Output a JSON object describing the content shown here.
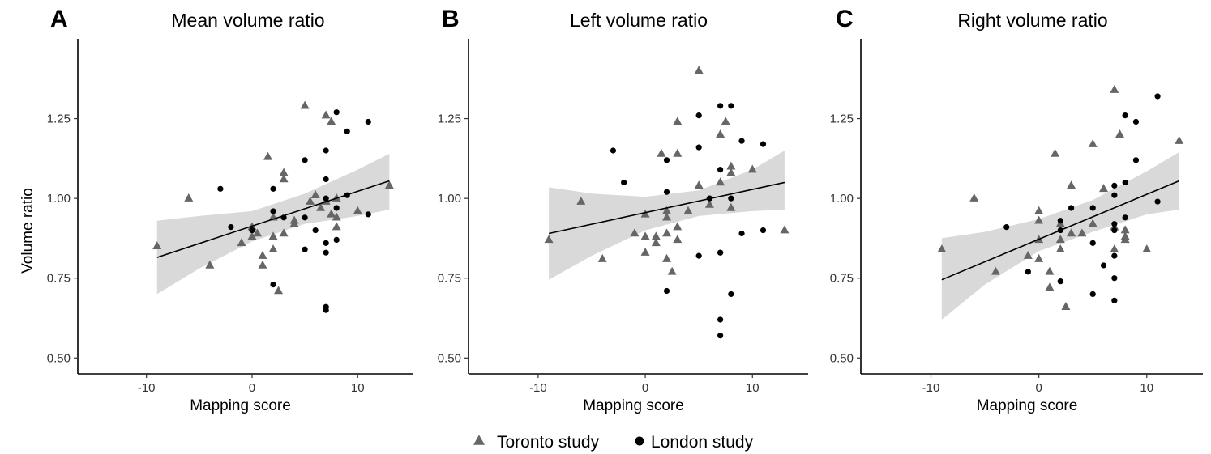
{
  "legend": {
    "toronto_label": "Toronto study",
    "london_label": "London study",
    "toronto_color": "#666666",
    "london_color": "#000000"
  },
  "style": {
    "band_color": "#d9d9d9",
    "line_color": "#000000"
  },
  "chart_data": [
    {
      "type": "scatter",
      "panel": "A",
      "title": "Mean volume ratio",
      "xlabel": "Mapping score",
      "ylabel": "Volume ratio",
      "xlim": [
        -16.5,
        15.2
      ],
      "ylim": [
        0.45,
        1.5
      ],
      "xticks": [
        -10,
        0,
        10
      ],
      "xtick_labels": [
        "-10",
        "0",
        "10"
      ],
      "yticks": [
        0.5,
        0.75,
        1.0,
        1.25
      ],
      "ytick_labels": [
        "0.50",
        "0.75",
        "1.00",
        "1.25"
      ],
      "grid": false,
      "legend_position": "bottom",
      "fit": {
        "x": [
          -9,
          13
        ],
        "y": [
          0.815,
          1.055
        ]
      },
      "ci_band": {
        "x": [
          -9,
          -5,
          0,
          5,
          10,
          13
        ],
        "lower": [
          0.7,
          0.78,
          0.865,
          0.92,
          0.945,
          0.965
        ],
        "upper": [
          0.93,
          0.945,
          0.96,
          1.015,
          1.09,
          1.14
        ]
      },
      "series": [
        {
          "name": "Toronto study",
          "marker": "triangle",
          "points": [
            [
              -9,
              0.85
            ],
            [
              -6,
              1.0
            ],
            [
              -4,
              0.79
            ],
            [
              -1,
              0.86
            ],
            [
              0,
              0.88
            ],
            [
              0,
              0.91
            ],
            [
              0.5,
              0.89
            ],
            [
              1,
              0.79
            ],
            [
              1,
              0.82
            ],
            [
              1.5,
              1.13
            ],
            [
              2,
              0.84
            ],
            [
              2,
              0.88
            ],
            [
              2,
              0.94
            ],
            [
              2.5,
              0.71
            ],
            [
              3,
              0.89
            ],
            [
              3,
              1.06
            ],
            [
              3,
              1.08
            ],
            [
              4,
              0.92
            ],
            [
              4,
              0.93
            ],
            [
              5,
              1.29
            ],
            [
              5.5,
              0.99
            ],
            [
              6,
              1.01
            ],
            [
              6.5,
              0.97
            ],
            [
              7,
              1.26
            ],
            [
              7,
              0.99
            ],
            [
              7.5,
              1.24
            ],
            [
              7.5,
              0.95
            ],
            [
              8,
              0.91
            ],
            [
              8,
              0.94
            ],
            [
              8,
              1.0
            ],
            [
              10,
              0.96
            ],
            [
              13,
              1.04
            ]
          ]
        },
        {
          "name": "London study",
          "marker": "circle",
          "points": [
            [
              -3,
              1.03
            ],
            [
              -2,
              0.91
            ],
            [
              0,
              0.9
            ],
            [
              2,
              0.73
            ],
            [
              2,
              0.96
            ],
            [
              2,
              1.03
            ],
            [
              3,
              0.94
            ],
            [
              5,
              0.94
            ],
            [
              5,
              1.12
            ],
            [
              5,
              0.84
            ],
            [
              6,
              0.9
            ],
            [
              7,
              0.66
            ],
            [
              7,
              0.65
            ],
            [
              7,
              0.83
            ],
            [
              7,
              0.86
            ],
            [
              7,
              1.0
            ],
            [
              7,
              1.06
            ],
            [
              7,
              1.15
            ],
            [
              8,
              0.87
            ],
            [
              8,
              0.97
            ],
            [
              8,
              1.27
            ],
            [
              9,
              1.01
            ],
            [
              9,
              1.21
            ],
            [
              11,
              1.24
            ],
            [
              11,
              0.95
            ]
          ]
        }
      ]
    },
    {
      "type": "scatter",
      "panel": "B",
      "title": "Left volume ratio",
      "xlabel": "Mapping score",
      "ylabel": "",
      "xlim": [
        -16.5,
        15.2
      ],
      "ylim": [
        0.45,
        1.5
      ],
      "xticks": [
        -10,
        0,
        10
      ],
      "xtick_labels": [
        "-10",
        "0",
        "10"
      ],
      "yticks": [
        0.5,
        0.75,
        1.0,
        1.25
      ],
      "ytick_labels": [
        "0.50",
        "0.75",
        "1.00",
        "1.25"
      ],
      "grid": false,
      "legend_position": "bottom",
      "fit": {
        "x": [
          -9,
          13
        ],
        "y": [
          0.89,
          1.05
        ]
      },
      "ci_band": {
        "x": [
          -9,
          -5,
          0,
          5,
          10,
          13
        ],
        "lower": [
          0.745,
          0.82,
          0.9,
          0.945,
          0.96,
          0.965
        ],
        "upper": [
          1.035,
          1.015,
          1.005,
          1.025,
          1.09,
          1.15
        ]
      },
      "series": [
        {
          "name": "Toronto study",
          "marker": "triangle",
          "points": [
            [
              -9,
              0.87
            ],
            [
              -6,
              0.99
            ],
            [
              -4,
              0.81
            ],
            [
              -1,
              0.89
            ],
            [
              0,
              0.83
            ],
            [
              0,
              0.88
            ],
            [
              0,
              0.95
            ],
            [
              1,
              0.86
            ],
            [
              1,
              0.88
            ],
            [
              1.5,
              1.14
            ],
            [
              2,
              0.81
            ],
            [
              2,
              0.89
            ],
            [
              2,
              0.94
            ],
            [
              2,
              0.96
            ],
            [
              2.5,
              0.77
            ],
            [
              3,
              0.87
            ],
            [
              3,
              0.91
            ],
            [
              3,
              1.14
            ],
            [
              3,
              1.24
            ],
            [
              4,
              0.96
            ],
            [
              5,
              1.4
            ],
            [
              5,
              1.04
            ],
            [
              6,
              0.98
            ],
            [
              7,
              1.05
            ],
            [
              7,
              1.2
            ],
            [
              7.5,
              1.24
            ],
            [
              8,
              0.97
            ],
            [
              8,
              1.08
            ],
            [
              8,
              1.1
            ],
            [
              10,
              1.09
            ],
            [
              13,
              0.9
            ]
          ]
        },
        {
          "name": "London study",
          "marker": "circle",
          "points": [
            [
              -3,
              1.15
            ],
            [
              -2,
              1.05
            ],
            [
              2,
              1.12
            ],
            [
              2,
              0.71
            ],
            [
              2,
              1.02
            ],
            [
              5,
              0.82
            ],
            [
              5,
              1.16
            ],
            [
              5,
              1.26
            ],
            [
              6,
              1.0
            ],
            [
              7,
              1.29
            ],
            [
              7,
              1.09
            ],
            [
              7,
              0.83
            ],
            [
              7,
              0.83
            ],
            [
              7,
              0.62
            ],
            [
              7,
              0.57
            ],
            [
              8,
              1.29
            ],
            [
              8,
              1.0
            ],
            [
              8,
              0.7
            ],
            [
              9,
              0.89
            ],
            [
              9,
              1.18
            ],
            [
              11,
              0.9
            ],
            [
              11,
              1.17
            ]
          ]
        }
      ]
    },
    {
      "type": "scatter",
      "panel": "C",
      "title": "Right volume ratio",
      "xlabel": "Mapping score",
      "ylabel": "",
      "xlim": [
        -16.5,
        15.2
      ],
      "ylim": [
        0.45,
        1.5
      ],
      "xticks": [
        -10,
        0,
        10
      ],
      "xtick_labels": [
        "-10",
        "0",
        "10"
      ],
      "yticks": [
        0.5,
        0.75,
        1.0,
        1.25
      ],
      "ytick_labels": [
        "0.50",
        "0.75",
        "1.00",
        "1.25"
      ],
      "grid": false,
      "legend_position": "bottom",
      "fit": {
        "x": [
          -9,
          13
        ],
        "y": [
          0.745,
          1.055
        ]
      },
      "ci_band": {
        "x": [
          -9,
          -5,
          0,
          5,
          10,
          13
        ],
        "lower": [
          0.62,
          0.73,
          0.835,
          0.895,
          0.95,
          0.965
        ],
        "upper": [
          0.875,
          0.895,
          0.935,
          0.995,
          1.085,
          1.145
        ]
      },
      "series": [
        {
          "name": "Toronto study",
          "marker": "triangle",
          "points": [
            [
              -9,
              0.84
            ],
            [
              -6,
              1.0
            ],
            [
              -4,
              0.77
            ],
            [
              -1,
              0.82
            ],
            [
              0,
              0.81
            ],
            [
              0,
              0.87
            ],
            [
              0,
              0.93
            ],
            [
              0,
              0.96
            ],
            [
              1,
              0.72
            ],
            [
              1,
              0.77
            ],
            [
              1.5,
              1.14
            ],
            [
              2,
              0.84
            ],
            [
              2,
              0.87
            ],
            [
              2,
              0.92
            ],
            [
              2.5,
              0.66
            ],
            [
              3,
              0.89
            ],
            [
              3,
              1.04
            ],
            [
              4,
              0.89
            ],
            [
              5,
              0.92
            ],
            [
              5,
              1.17
            ],
            [
              6,
              1.03
            ],
            [
              7,
              1.34
            ],
            [
              7,
              0.91
            ],
            [
              7,
              0.84
            ],
            [
              7.5,
              1.2
            ],
            [
              8,
              0.87
            ],
            [
              8,
              0.88
            ],
            [
              8,
              0.9
            ],
            [
              10,
              0.84
            ],
            [
              13,
              1.18
            ]
          ]
        },
        {
          "name": "London study",
          "marker": "circle",
          "points": [
            [
              -3,
              0.91
            ],
            [
              -1,
              0.77
            ],
            [
              2,
              0.74
            ],
            [
              2,
              0.9
            ],
            [
              2,
              0.93
            ],
            [
              3,
              0.97
            ],
            [
              5,
              0.7
            ],
            [
              5,
              0.86
            ],
            [
              5,
              0.97
            ],
            [
              6,
              0.79
            ],
            [
              7,
              0.68
            ],
            [
              7,
              0.75
            ],
            [
              7,
              0.82
            ],
            [
              7,
              0.9
            ],
            [
              7,
              0.92
            ],
            [
              7,
              1.01
            ],
            [
              7,
              1.04
            ],
            [
              8,
              0.94
            ],
            [
              8,
              1.05
            ],
            [
              8,
              1.26
            ],
            [
              9,
              1.12
            ],
            [
              9,
              1.24
            ],
            [
              11,
              1.32
            ],
            [
              11,
              0.99
            ]
          ]
        }
      ]
    }
  ]
}
